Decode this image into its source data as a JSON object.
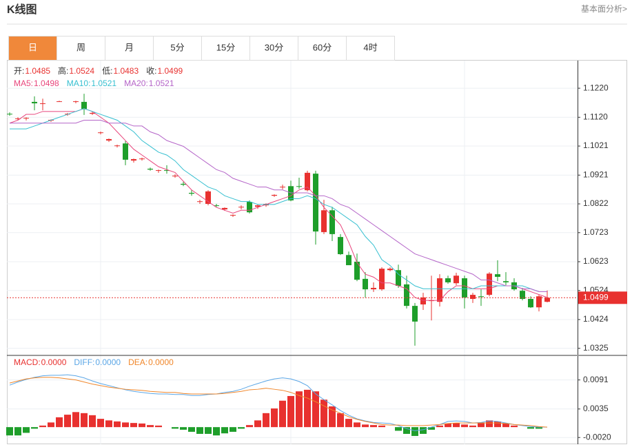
{
  "header": {
    "title": "K线图",
    "link": "基本面分析>"
  },
  "tabs": [
    "日",
    "周",
    "月",
    "5分",
    "15分",
    "30分",
    "60分",
    "4时"
  ],
  "active_tab": 0,
  "chart_data": [
    {
      "type": "candlestick",
      "info": [
        {
          "name": "开:",
          "value": 1.0485
        },
        {
          "name": "高:",
          "value": 1.0524
        },
        {
          "name": "低:",
          "value": 1.0483
        },
        {
          "name": "收:",
          "value": 1.0499
        }
      ],
      "up_color": "#e8312f",
      "down_color": "#1e9e2a",
      "candles": [
        [
          1.1132,
          1.1137,
          1.1125,
          1.113
        ],
        [
          1.1116,
          1.112,
          1.1111,
          1.1116
        ],
        [
          1.1116,
          1.112,
          1.1109,
          1.1118
        ],
        [
          1.1173,
          1.1192,
          1.1144,
          1.1168
        ],
        [
          1.1168,
          1.1184,
          1.1144,
          1.1168
        ],
        [
          1.1109,
          1.1113,
          1.1104,
          1.1111
        ],
        [
          1.1175,
          1.1177,
          1.1173,
          1.1175
        ],
        [
          1.113,
          1.1135,
          1.1125,
          1.1132
        ],
        [
          1.1173,
          1.1177,
          1.1168,
          1.1175
        ],
        [
          1.1173,
          1.1201,
          1.1128,
          1.1149
        ],
        [
          1.1132,
          1.1139,
          1.1128,
          1.1135
        ],
        [
          1.1066,
          1.1071,
          1.1061,
          1.1068
        ],
        [
          1.104,
          1.1047,
          1.1035,
          1.1045
        ],
        [
          1.1021,
          1.1026,
          1.1016,
          1.1023
        ],
        [
          1.103,
          1.1038,
          1.0955,
          1.0974
        ],
        [
          1.0971,
          1.0978,
          1.0964,
          1.0976
        ],
        [
          1.0976,
          1.0981,
          1.0971,
          1.0978
        ],
        [
          1.0943,
          1.0947,
          1.0936,
          1.094
        ],
        [
          1.0936,
          1.094,
          1.0929,
          1.0938
        ],
        [
          1.0938,
          1.0955,
          1.0926,
          1.0936
        ],
        [
          1.0917,
          1.0924,
          1.0912,
          1.0919
        ],
        [
          1.0891,
          1.0898,
          1.0883,
          1.0888
        ],
        [
          1.086,
          1.0869,
          1.085,
          1.0857
        ],
        [
          1.0829,
          1.0836,
          1.0822,
          1.0831
        ],
        [
          1.0822,
          1.0869,
          1.0817,
          1.0865
        ],
        [
          1.0817,
          1.0822,
          1.0812,
          1.0815
        ],
        [
          1.0803,
          1.081,
          1.0798,
          1.0808
        ],
        [
          1.0782,
          1.0786,
          1.0777,
          1.0784
        ],
        [
          1.081,
          1.0817,
          1.0803,
          1.0812
        ],
        [
          1.0829,
          1.0834,
          1.0789,
          1.0793
        ],
        [
          1.0812,
          1.082,
          1.0805,
          1.0817
        ],
        [
          1.0817,
          1.0824,
          1.0812,
          1.0822
        ],
        [
          1.085,
          1.0855,
          1.0846,
          1.0853
        ],
        [
          1.0879,
          1.0888,
          1.0872,
          1.0881
        ],
        [
          1.0883,
          1.0902,
          1.0831,
          1.0834
        ],
        [
          1.0883,
          1.0912,
          1.0874,
          1.0881
        ],
        [
          1.0869,
          1.0936,
          1.0865,
          1.0929
        ],
        [
          1.0926,
          1.0936,
          1.0682,
          1.0727
        ],
        [
          1.0725,
          1.0836,
          1.0718,
          1.08
        ],
        [
          1.08,
          1.0812,
          1.0694,
          1.0718
        ],
        [
          1.0708,
          1.0718,
          1.0646,
          1.0649
        ],
        [
          1.0646,
          1.0658,
          1.0611,
          1.0611
        ],
        [
          1.0623,
          1.0651,
          1.0556,
          1.0561
        ],
        [
          1.0564,
          1.0587,
          1.05,
          1.0528
        ],
        [
          1.0528,
          1.0552,
          1.0519,
          1.0533
        ],
        [
          1.0528,
          1.0604,
          1.0523,
          1.0599
        ],
        [
          1.0594,
          1.0604,
          1.059,
          1.0599
        ],
        [
          1.0594,
          1.0613,
          1.0533,
          1.054
        ],
        [
          1.0545,
          1.0575,
          1.0462,
          1.0471
        ],
        [
          1.0471,
          1.0481,
          1.0334,
          1.0417
        ],
        [
          1.0476,
          1.0516,
          1.0457,
          1.05
        ],
        [
          1.049,
          1.0575,
          1.0421,
          1.049
        ],
        [
          1.0485,
          1.058,
          1.0469,
          1.0566
        ],
        [
          1.0566,
          1.0575,
          1.0547,
          1.0552
        ],
        [
          1.0549,
          1.0585,
          1.0542,
          1.0575
        ],
        [
          1.0566,
          1.0575,
          1.0462,
          1.05
        ],
        [
          1.0495,
          1.0516,
          1.0481,
          1.0509
        ],
        [
          1.0504,
          1.0528,
          1.0471,
          1.0502
        ],
        [
          1.0509,
          1.0587,
          1.0504,
          1.0582
        ],
        [
          1.058,
          1.0628,
          1.0556,
          1.0571
        ],
        [
          1.0556,
          1.0587,
          1.0542,
          1.0552
        ],
        [
          1.0552,
          1.0566,
          1.0523,
          1.0528
        ],
        [
          1.0523,
          1.0533,
          1.049,
          1.0495
        ],
        [
          1.0495,
          1.0504,
          1.0464,
          1.0466
        ],
        [
          1.0466,
          1.0509,
          1.0452,
          1.0504
        ],
        [
          1.0485,
          1.0524,
          1.0483,
          1.0499
        ]
      ],
      "series": [
        {
          "name": "MA5:",
          "color": "#e8457c",
          "last": 1.0498,
          "values": [
            1.11,
            1.111,
            1.113,
            1.113,
            1.114,
            1.114,
            1.114,
            1.114,
            1.114,
            1.115,
            1.114,
            1.112,
            1.11,
            1.107,
            1.104,
            1.101,
            1.099,
            1.097,
            1.095,
            1.094,
            1.093,
            1.09,
            1.087,
            1.085,
            1.083,
            1.081,
            1.08,
            1.079,
            1.08,
            1.08,
            1.081,
            1.082,
            1.083,
            1.084,
            1.085,
            1.087,
            1.088,
            1.085,
            1.081,
            1.078,
            1.075,
            1.069,
            1.062,
            1.058,
            1.057,
            1.055,
            1.055,
            1.054,
            1.053,
            1.05,
            1.049,
            1.049,
            1.049,
            1.052,
            1.054,
            1.054,
            1.053,
            1.053,
            1.053,
            1.054,
            1.054,
            1.054,
            1.053,
            1.052,
            1.051,
            1.05
          ]
        },
        {
          "name": "MA10:",
          "color": "#35bfd0",
          "last": 1.0521,
          "values": [
            1.108,
            1.108,
            1.108,
            1.109,
            1.11,
            1.111,
            1.112,
            1.113,
            1.114,
            1.115,
            1.114,
            1.113,
            1.112,
            1.111,
            1.109,
            1.107,
            1.104,
            1.102,
            1.1,
            1.099,
            1.097,
            1.094,
            1.092,
            1.09,
            1.088,
            1.087,
            1.085,
            1.084,
            1.083,
            1.083,
            1.082,
            1.082,
            1.082,
            1.083,
            1.084,
            1.084,
            1.085,
            1.084,
            1.082,
            1.081,
            1.079,
            1.077,
            1.075,
            1.071,
            1.068,
            1.063,
            1.061,
            1.058,
            1.056,
            1.054,
            1.053,
            1.053,
            1.053,
            1.053,
            1.053,
            1.053,
            1.053,
            1.054,
            1.054,
            1.054,
            1.054,
            1.054,
            1.054,
            1.053,
            1.052,
            1.052
          ]
        },
        {
          "name": "MA20:",
          "color": "#b464c8",
          "last": 1.0521,
          "values": [
            1.11,
            1.11,
            1.11,
            1.11,
            1.11,
            1.11,
            1.11,
            1.11,
            1.11,
            1.111,
            1.111,
            1.111,
            1.11,
            1.11,
            1.11,
            1.109,
            1.109,
            1.107,
            1.106,
            1.104,
            1.103,
            1.102,
            1.1,
            1.098,
            1.096,
            1.094,
            1.093,
            1.091,
            1.09,
            1.089,
            1.088,
            1.088,
            1.087,
            1.087,
            1.086,
            1.086,
            1.086,
            1.085,
            1.085,
            1.084,
            1.082,
            1.081,
            1.079,
            1.077,
            1.075,
            1.073,
            1.071,
            1.069,
            1.067,
            1.065,
            1.064,
            1.063,
            1.062,
            1.061,
            1.06,
            1.059,
            1.058,
            1.056,
            1.056,
            1.055,
            1.054,
            1.054,
            1.053,
            1.053,
            1.052,
            1.052
          ]
        }
      ],
      "ylim": [
        1.0303,
        1.1315
      ],
      "yticks": [
        1.0325,
        1.0424,
        1.0524,
        1.0623,
        1.0723,
        1.0822,
        1.0921,
        1.1021,
        {
          "value": 1.112,
          "label": "1.1120"
        },
        {
          "value": 1.122,
          "label": "1.1220"
        }
      ],
      "last_price": 1.0499,
      "last_price_color": "#e8312f"
    },
    {
      "type": "macd",
      "series": [
        {
          "name": "MACD:",
          "style": "bar",
          "color": "#e8312f",
          "up_color": "#e8312f",
          "down_color": "#1e9e2a",
          "last": {
            "value": 0,
            "label": "0.0000"
          },
          "values": [
            -0.0016,
            -0.0016,
            -0.0011,
            -0.0003,
            0.0003,
            0.0009,
            0.0019,
            0.0024,
            0.0029,
            0.0027,
            0.0023,
            0.0016,
            0.0013,
            0.0011,
            0.0009,
            0.0008,
            0.0007,
            0.0004,
            0.0003,
            0,
            -0.0003,
            -0.0005,
            -0.0009,
            -0.0013,
            -0.0013,
            -0.0016,
            -0.0012,
            -0.0009,
            -0.0003,
            0.0004,
            0.0013,
            0.0027,
            0.0036,
            0.0051,
            0.006,
            0.0069,
            0.0072,
            0.0069,
            0.0053,
            0.004,
            0.0027,
            0.0016,
            0.0009,
            0.0005,
            0.0004,
            0.0003,
            0,
            -0.0007,
            -0.0013,
            -0.0017,
            -0.0013,
            -0.0005,
            0.0003,
            0.0007,
            0.0008,
            0.0005,
            0.0003,
            0.0009,
            0.0013,
            0.0011,
            0.0007,
            0.0003,
            0,
            -0.0003,
            -0.0003,
            0
          ]
        },
        {
          "name": "DIFF:",
          "style": "line",
          "color": "#5aa6e6",
          "last": {
            "value": 0,
            "label": "0.0000"
          },
          "values": [
            0.0081,
            0.0087,
            0.0092,
            0.0096,
            0.0099,
            0.01,
            0.01,
            0.0101,
            0.0099,
            0.0095,
            0.0089,
            0.0084,
            0.008,
            0.0076,
            0.0072,
            0.0069,
            0.0067,
            0.0065,
            0.0064,
            0.0064,
            0.0063,
            0.0063,
            0.0061,
            0.0061,
            0.0063,
            0.0064,
            0.0067,
            0.0069,
            0.0073,
            0.0079,
            0.0084,
            0.0089,
            0.0093,
            0.0095,
            0.0093,
            0.0088,
            0.008,
            0.0064,
            0.0053,
            0.0043,
            0.0032,
            0.0023,
            0.0016,
            0.0012,
            0.0009,
            0.0008,
            0.0007,
            0.0003,
            -0.0003,
            -0.0007,
            -0.0005,
            0,
            0.0005,
            0.0011,
            0.0012,
            0.0011,
            0.0008,
            0.0009,
            0.0012,
            0.0011,
            0.0008,
            0.0005,
            0.0003,
            0.0001,
            0,
            0
          ]
        },
        {
          "name": "DEA:",
          "style": "line",
          "color": "#f0862a",
          "last": {
            "value": 0,
            "label": "0.0000"
          },
          "values": [
            0.0085,
            0.0089,
            0.0093,
            0.0095,
            0.0096,
            0.0096,
            0.0095,
            0.0093,
            0.0091,
            0.0087,
            0.0083,
            0.008,
            0.0077,
            0.0075,
            0.0073,
            0.0072,
            0.0071,
            0.0069,
            0.0068,
            0.0067,
            0.0067,
            0.0065,
            0.0064,
            0.0064,
            0.0064,
            0.0064,
            0.0065,
            0.0067,
            0.0069,
            0.0072,
            0.0073,
            0.0075,
            0.0073,
            0.0071,
            0.0067,
            0.0061,
            0.0056,
            0.0049,
            0.0041,
            0.0033,
            0.0027,
            0.002,
            0.0015,
            0.0011,
            0.0008,
            0.0005,
            0.0004,
            0.0004,
            0.0003,
            0.0003,
            0.0003,
            0.0004,
            0.0005,
            0.0007,
            0.0008,
            0.0008,
            0.0008,
            0.0008,
            0.0008,
            0.0008,
            0.0007,
            0.0005,
            0.0004,
            0.0003,
            0.0001,
            0
          ]
        }
      ],
      "ylim": [
        -0.0033,
        0.0137
      ],
      "yticks": [
        {
          "value": -0.002,
          "label": "-0.0020"
        },
        0.0035,
        0.0091
      ]
    }
  ]
}
